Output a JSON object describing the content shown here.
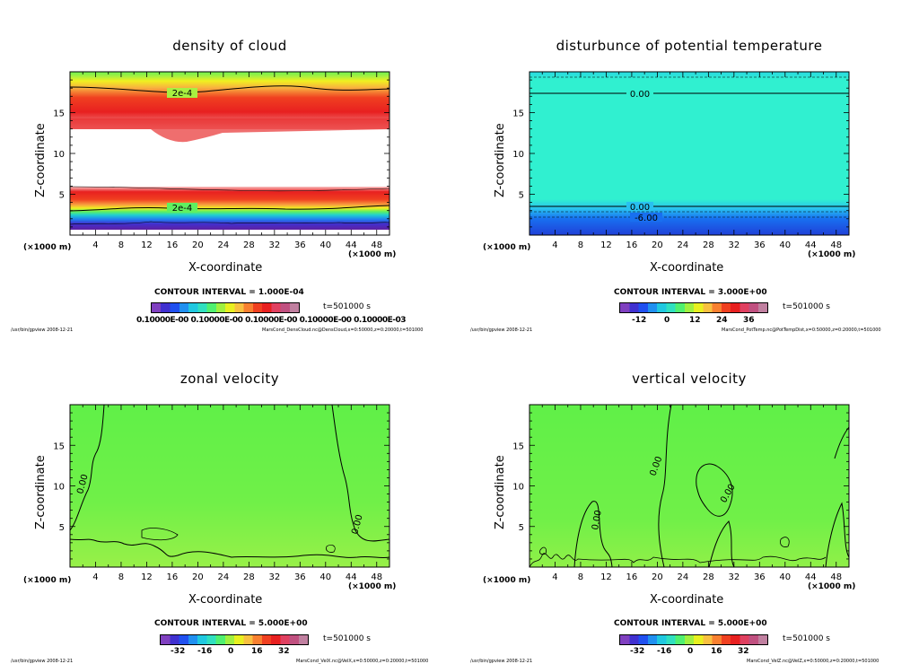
{
  "chart_data": [
    {
      "type": "heatmap",
      "title": "density of cloud",
      "xlabel": "X-coordinate",
      "ylabel": "Z-coordinate",
      "x_unit": "(×1000 m)",
      "y_unit": "(×1000 m)",
      "xlim": [
        0,
        50
      ],
      "ylim": [
        0,
        20
      ],
      "xticks": [
        4,
        8,
        12,
        16,
        20,
        24,
        28,
        32,
        36,
        40,
        44,
        48
      ],
      "yticks": [
        5,
        10,
        15
      ],
      "contour_interval": "CONTOUR INTERVAL = 1.000E-04",
      "time": "t=501000 s",
      "contour_labels": [
        "2e-4",
        "2e-4"
      ],
      "colorbar_labels": "0.10000E-00 0.10000E-00 0.10000E-00 0.10000E-00 0.10000E-03",
      "footer_left": "/usr/bin/gpview  2008-12-21",
      "footer_right": "MarsCond_DensCloud.nc@DensCloud,x=0:50000,z=0:20000,t=501000"
    },
    {
      "type": "heatmap",
      "title": "disturbunce of potential temperature",
      "xlabel": "X-coordinate",
      "ylabel": "Z-coordinate",
      "x_unit": "(×1000 m)",
      "y_unit": "(×1000 m)",
      "xlim": [
        0,
        50
      ],
      "ylim": [
        0,
        20
      ],
      "xticks": [
        4,
        8,
        12,
        16,
        20,
        24,
        28,
        32,
        36,
        40,
        44,
        48
      ],
      "yticks": [
        5,
        10,
        15
      ],
      "contour_interval": "CONTOUR INTERVAL = 3.000E+00",
      "time": "t=501000 s",
      "contour_labels": [
        "0.00",
        "0.00",
        "-6.00"
      ],
      "colorbar_ticks": [
        "-12",
        "0",
        "12",
        "24",
        "36"
      ],
      "footer_left": "/usr/bin/gpview  2008-12-21",
      "footer_right": "MarsCond_PotTemp.nc@PotTempDist,x=0:50000,z=0:20000,t=501000"
    },
    {
      "type": "heatmap",
      "title": "zonal velocity",
      "xlabel": "X-coordinate",
      "ylabel": "Z-coordinate",
      "x_unit": "(×1000 m)",
      "y_unit": "(×1000 m)",
      "xlim": [
        0,
        50
      ],
      "ylim": [
        0,
        20
      ],
      "xticks": [
        4,
        8,
        12,
        16,
        20,
        24,
        28,
        32,
        36,
        40,
        44,
        48
      ],
      "yticks": [
        5,
        10,
        15
      ],
      "contour_interval": "CONTOUR INTERVAL = 5.000E+00",
      "time": "t=501000 s",
      "contour_labels": [
        "0.00",
        "0.00"
      ],
      "colorbar_ticks": [
        "-32",
        "-16",
        "0",
        "16",
        "32"
      ],
      "footer_left": "/usr/bin/gpview  2008-12-21",
      "footer_right": "MarsCond_VelX.nc@VelX,x=0:50000,z=0:20000,t=501000"
    },
    {
      "type": "heatmap",
      "title": "vertical velocity",
      "xlabel": "X-coordinate",
      "ylabel": "Z-coordinate",
      "x_unit": "(×1000 m)",
      "y_unit": "(×1000 m)",
      "xlim": [
        0,
        50
      ],
      "ylim": [
        0,
        20
      ],
      "xticks": [
        4,
        8,
        12,
        16,
        20,
        24,
        28,
        32,
        36,
        40,
        44,
        48
      ],
      "yticks": [
        5,
        10,
        15
      ],
      "contour_interval": "CONTOUR INTERVAL = 5.000E+00",
      "time": "t=501000 s",
      "contour_labels": [
        "0.00",
        "0.00",
        "0.00"
      ],
      "colorbar_ticks": [
        "-32",
        "-16",
        "0",
        "16",
        "32"
      ],
      "footer_left": "/usr/bin/gpview  2008-12-21",
      "footer_right": "MarsCond_VelZ.nc@VelZ,x=0:50000,z=0:20000,t=501000"
    }
  ]
}
